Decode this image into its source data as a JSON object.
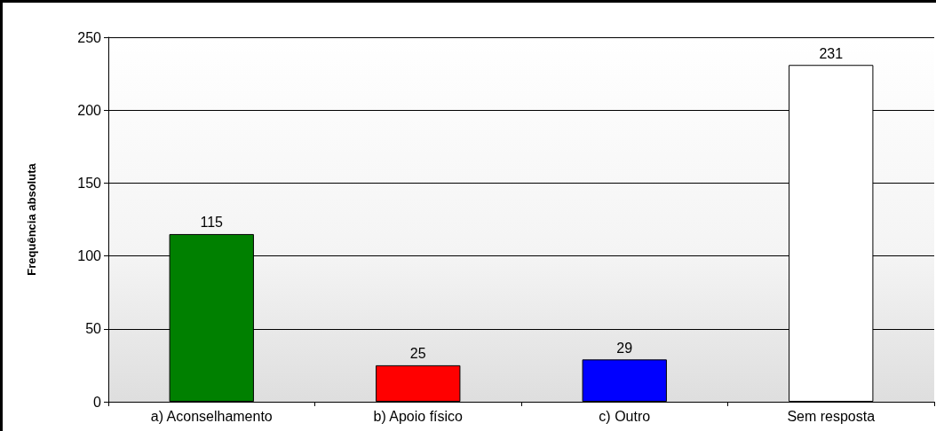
{
  "chart_data": {
    "type": "bar",
    "ylabel": "Frequência absoluta",
    "categories": [
      "a) Aconselhamento",
      "b) Apoio físico",
      "c) Outro",
      "Sem resposta"
    ],
    "values": [
      115,
      25,
      29,
      231
    ],
    "colors": [
      "#008000",
      "#ff0000",
      "#0000ff",
      "#ffffff"
    ],
    "ylim": [
      0,
      250
    ],
    "yticks": [
      0,
      50,
      100,
      150,
      200,
      250
    ],
    "grid": "y",
    "data_labels": true
  }
}
